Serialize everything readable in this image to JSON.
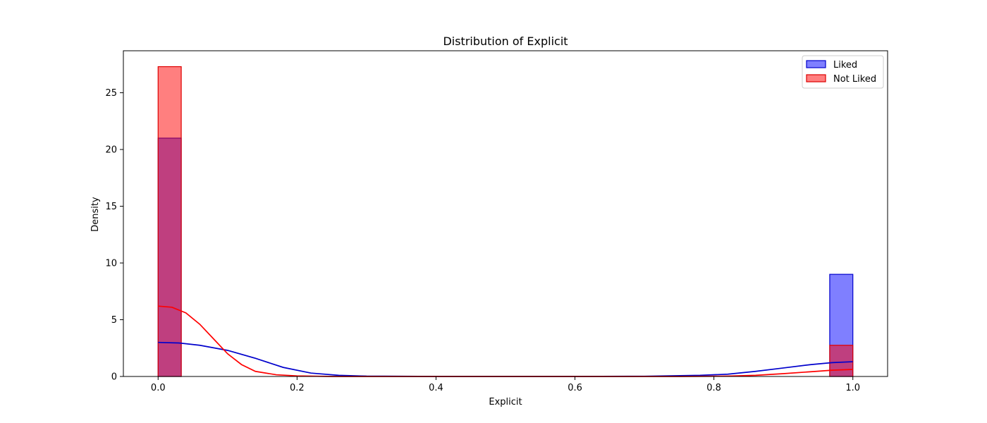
{
  "chart_data": {
    "type": "bar",
    "title": "Distribution of Explicit",
    "xlabel": "Explicit",
    "ylabel": "Density",
    "xlim": [
      -0.05,
      1.05
    ],
    "ylim": [
      0,
      28.7
    ],
    "xticks": [
      0.0,
      0.2,
      0.4,
      0.6,
      0.8,
      1.0
    ],
    "xtick_labels": [
      "0.0",
      "0.2",
      "0.4",
      "0.6",
      "0.8",
      "1.0"
    ],
    "yticks": [
      0,
      5,
      10,
      15,
      20,
      25
    ],
    "ytick_labels": [
      "0",
      "5",
      "10",
      "15",
      "20",
      "25"
    ],
    "grid": false,
    "legend_position": "top-right",
    "series": [
      {
        "name": "Liked",
        "color": "#0000ff",
        "edge_color": "#0000cc",
        "fill_opacity": 0.5,
        "bins": [
          {
            "x0": 0.0,
            "x1": 0.0333,
            "density": 21.0
          },
          {
            "x0": 0.9667,
            "x1": 1.0,
            "density": 9.0
          }
        ],
        "kde": [
          [
            0.0,
            3.0
          ],
          [
            0.03,
            2.95
          ],
          [
            0.06,
            2.75
          ],
          [
            0.1,
            2.3
          ],
          [
            0.14,
            1.6
          ],
          [
            0.18,
            0.8
          ],
          [
            0.22,
            0.3
          ],
          [
            0.26,
            0.1
          ],
          [
            0.3,
            0.03
          ],
          [
            0.4,
            0.0
          ],
          [
            0.6,
            0.0
          ],
          [
            0.7,
            0.02
          ],
          [
            0.78,
            0.1
          ],
          [
            0.82,
            0.2
          ],
          [
            0.86,
            0.45
          ],
          [
            0.9,
            0.75
          ],
          [
            0.94,
            1.05
          ],
          [
            0.97,
            1.22
          ],
          [
            1.0,
            1.3
          ]
        ]
      },
      {
        "name": "Not Liked",
        "color": "#ff0000",
        "edge_color": "#dd0000",
        "fill_opacity": 0.5,
        "bins": [
          {
            "x0": 0.0,
            "x1": 0.0333,
            "density": 27.3
          },
          {
            "x0": 0.9667,
            "x1": 1.0,
            "density": 2.75
          }
        ],
        "kde": [
          [
            0.0,
            6.2
          ],
          [
            0.02,
            6.1
          ],
          [
            0.04,
            5.6
          ],
          [
            0.06,
            4.6
          ],
          [
            0.08,
            3.3
          ],
          [
            0.1,
            2.0
          ],
          [
            0.12,
            1.05
          ],
          [
            0.14,
            0.45
          ],
          [
            0.17,
            0.15
          ],
          [
            0.2,
            0.05
          ],
          [
            0.25,
            0.0
          ],
          [
            0.5,
            0.0
          ],
          [
            0.75,
            0.0
          ],
          [
            0.82,
            0.03
          ],
          [
            0.86,
            0.1
          ],
          [
            0.9,
            0.25
          ],
          [
            0.94,
            0.42
          ],
          [
            0.97,
            0.55
          ],
          [
            1.0,
            0.62
          ]
        ]
      }
    ]
  }
}
